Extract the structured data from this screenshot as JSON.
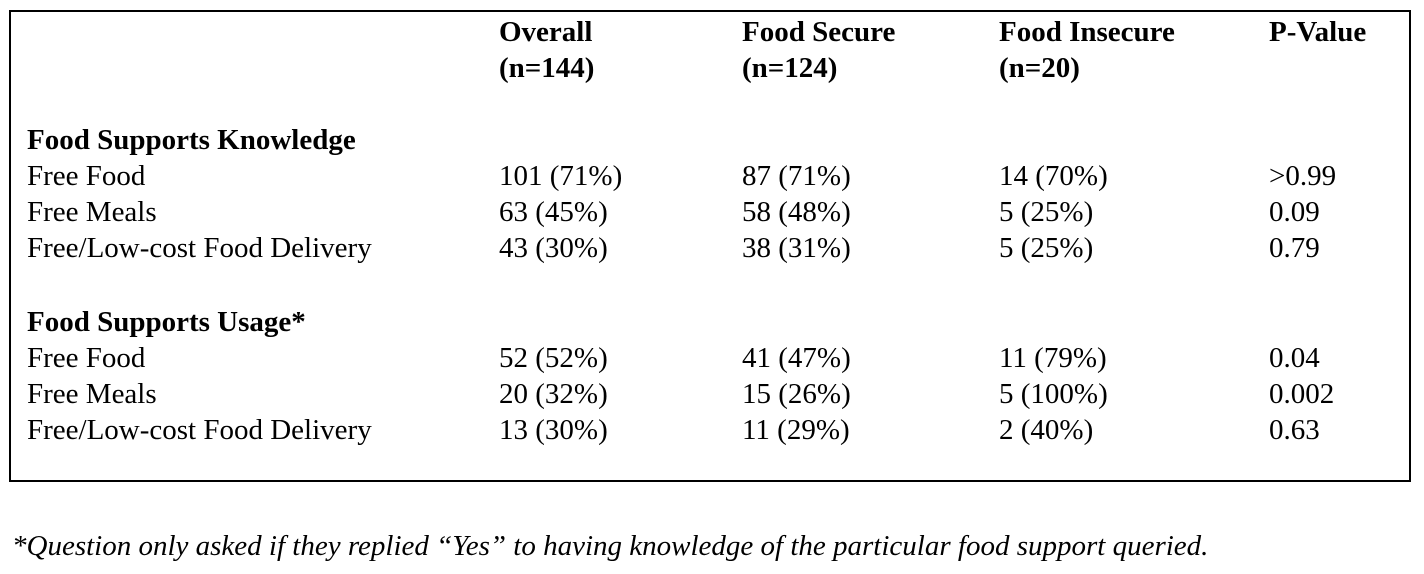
{
  "columns": [
    {
      "label": "Overall",
      "n": "(n=144)"
    },
    {
      "label": "Food Secure",
      "n": "(n=124)"
    },
    {
      "label": "Food Insecure",
      "n": "(n=20)"
    },
    {
      "label": "P-Value",
      "n": ""
    }
  ],
  "sections": [
    {
      "title": "Food Supports Knowledge",
      "rows": [
        {
          "label": "Free Food",
          "values": [
            "101 (71%)",
            "87 (71%)",
            "14 (70%)",
            ">0.99"
          ]
        },
        {
          "label": "Free Meals",
          "values": [
            "63 (45%)",
            "58 (48%)",
            "5 (25%)",
            "0.09"
          ]
        },
        {
          "label": "Free/Low-cost Food Delivery",
          "values": [
            "43 (30%)",
            "38 (31%)",
            "5 (25%)",
            "0.79"
          ]
        }
      ]
    },
    {
      "title": "Food Supports Usage*",
      "rows": [
        {
          "label": "Free Food",
          "values": [
            "52 (52%)",
            "41 (47%)",
            "11 (79%)",
            "0.04"
          ]
        },
        {
          "label": "Free Meals",
          "values": [
            "20 (32%)",
            "15 (26%)",
            "5 (100%)",
            "0.002"
          ]
        },
        {
          "label": "Free/Low-cost Food Delivery",
          "values": [
            "13 (30%)",
            "11 (29%)",
            "2 (40%)",
            "0.63"
          ]
        }
      ]
    }
  ],
  "footnote": "*Question only asked if they replied “Yes” to having knowledge of the particular food support queried."
}
